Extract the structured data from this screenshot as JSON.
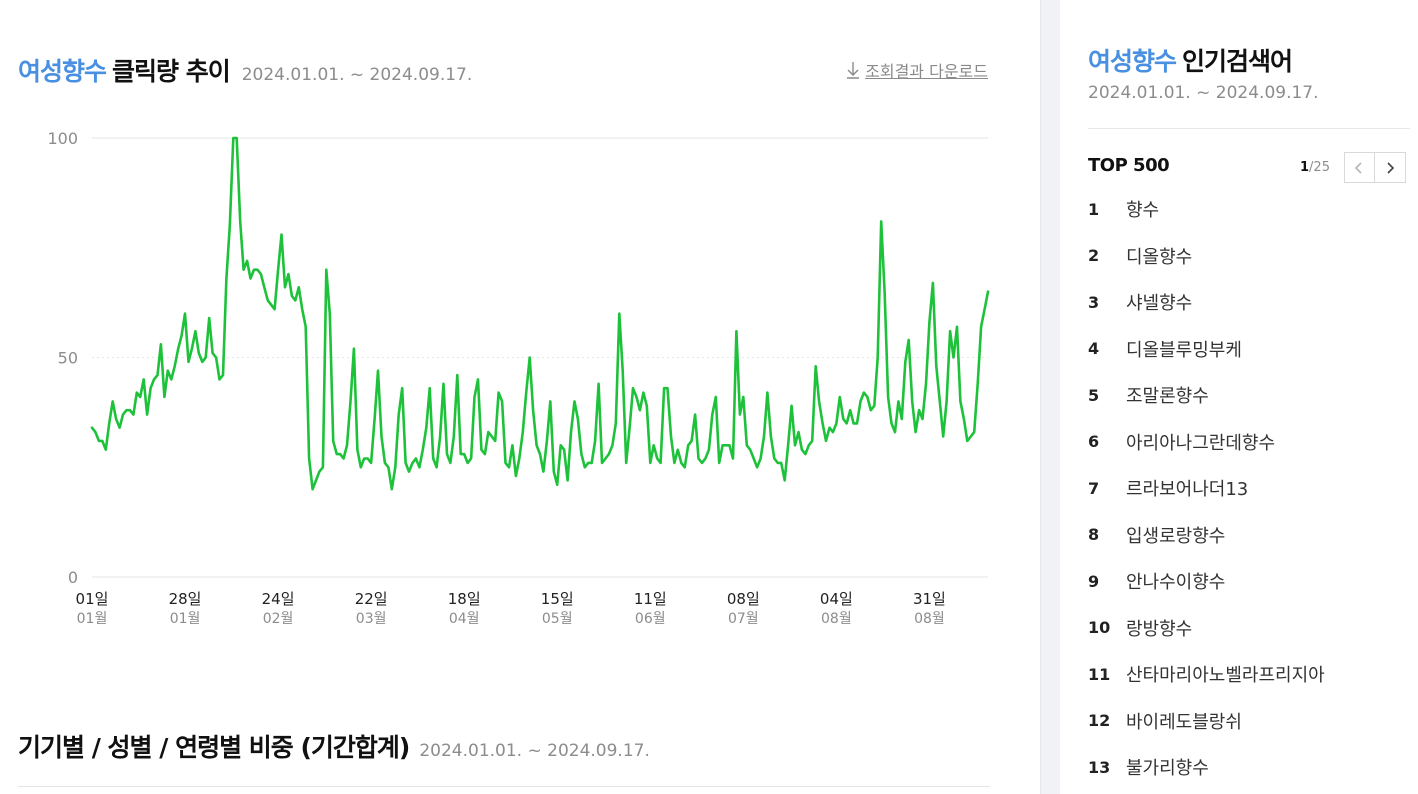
{
  "header": {
    "keyword": "여성향수",
    "title_rest": "클릭량 추이",
    "period": "2024.01.01. ~ 2024.09.17.",
    "download_label": "조회결과 다운로드"
  },
  "section2": {
    "title": "기기별 / 성별 / 연령별 비중 (기간합계)",
    "period": "2024.01.01. ~ 2024.09.17."
  },
  "sidebar": {
    "keyword": "여성향수",
    "title_rest": "인기검색어",
    "period": "2024.01.01. ~ 2024.09.17.",
    "top_label": "TOP 500",
    "page_current": "1",
    "page_total": "/25",
    "items": [
      {
        "rank": "1",
        "label": "향수"
      },
      {
        "rank": "2",
        "label": "디올향수"
      },
      {
        "rank": "3",
        "label": "샤넬향수"
      },
      {
        "rank": "4",
        "label": "디올블루밍부케"
      },
      {
        "rank": "5",
        "label": "조말론향수"
      },
      {
        "rank": "6",
        "label": "아리아나그란데향수"
      },
      {
        "rank": "7",
        "label": "르라보어나더13"
      },
      {
        "rank": "8",
        "label": "입생로랑향수"
      },
      {
        "rank": "9",
        "label": "안나수이향수"
      },
      {
        "rank": "10",
        "label": "랑방향수"
      },
      {
        "rank": "11",
        "label": "산타마리아노벨라프리지아"
      },
      {
        "rank": "12",
        "label": "바이레도블랑쉬"
      },
      {
        "rank": "13",
        "label": "불가리향수"
      }
    ]
  },
  "colors": {
    "accent": "#4a90e2",
    "line": "#1ec23a",
    "grid": "#e6e6e6",
    "muted": "#8c8c8c"
  },
  "icons": {
    "download": "download-arrow-icon",
    "prev": "chevron-left-icon",
    "next": "chevron-right-icon"
  },
  "chart_data": {
    "type": "line",
    "title": "여성향수 클릭량 추이",
    "xlabel": "",
    "ylabel": "",
    "ylim": [
      0,
      100
    ],
    "yticks": [
      0,
      50,
      100
    ],
    "grid": true,
    "x_tick_labels": [
      {
        "day": "01일",
        "month": "01월",
        "index": 0
      },
      {
        "day": "28일",
        "month": "01월",
        "index": 27
      },
      {
        "day": "24일",
        "month": "02월",
        "index": 54
      },
      {
        "day": "22일",
        "month": "03월",
        "index": 81
      },
      {
        "day": "18일",
        "month": "04월",
        "index": 108
      },
      {
        "day": "15일",
        "month": "05월",
        "index": 135
      },
      {
        "day": "11일",
        "month": "06월",
        "index": 162
      },
      {
        "day": "08일",
        "month": "07월",
        "index": 189
      },
      {
        "day": "04일",
        "month": "08월",
        "index": 216
      },
      {
        "day": "31일",
        "month": "08월",
        "index": 243
      }
    ],
    "series": [
      {
        "values": [
          34,
          33,
          31,
          31,
          29,
          35,
          40,
          36,
          34,
          37,
          38,
          38,
          37,
          42,
          41,
          45,
          37,
          43,
          45,
          46,
          53,
          41,
          47,
          45,
          48,
          52,
          55,
          60,
          49,
          52,
          56,
          51,
          49,
          50,
          59,
          51,
          50,
          45,
          46,
          68,
          80,
          100,
          100,
          81,
          70,
          72,
          68,
          70,
          70,
          69,
          66,
          63,
          62,
          61,
          70,
          78,
          66,
          69,
          64,
          63,
          66,
          61,
          57,
          27,
          20,
          22,
          24,
          25,
          70,
          60,
          31,
          28,
          28,
          27,
          30,
          40,
          52,
          29,
          25,
          27,
          27,
          26,
          36,
          47,
          32,
          26,
          25,
          20,
          25,
          37,
          43,
          26,
          24,
          26,
          27,
          25,
          29,
          34,
          43,
          27,
          25,
          32,
          44,
          28,
          26,
          32,
          46,
          28,
          28,
          26,
          27,
          41,
          45,
          29,
          28,
          33,
          32,
          31,
          42,
          40,
          26,
          25,
          30,
          23,
          27,
          33,
          42,
          50,
          38,
          30,
          28,
          24,
          31,
          40,
          24,
          21,
          30,
          29,
          22,
          33,
          40,
          36,
          28,
          25,
          26,
          26,
          31,
          44,
          26,
          27,
          28,
          30,
          35,
          60,
          47,
          26,
          34,
          43,
          41,
          38,
          42,
          39,
          26,
          30,
          27,
          26,
          43,
          43,
          32,
          26,
          29,
          26,
          25,
          30,
          31,
          37,
          27,
          26,
          27,
          29,
          37,
          41,
          26,
          30,
          30,
          30,
          27,
          56,
          37,
          41,
          30,
          29,
          27,
          25,
          27,
          32,
          42,
          32,
          27,
          26,
          26,
          22,
          30,
          39,
          30,
          33,
          29,
          28,
          30,
          31,
          48,
          40,
          35,
          31,
          34,
          33,
          35,
          41,
          36,
          35,
          38,
          35,
          35,
          40,
          42,
          41,
          38,
          39,
          50,
          81,
          65,
          41,
          35,
          33,
          40,
          36,
          49,
          54,
          40,
          33,
          38,
          36,
          44,
          58,
          67,
          48,
          40,
          32,
          40,
          56,
          50,
          57,
          40,
          36,
          31,
          32,
          33,
          44,
          57,
          61,
          65
        ]
      }
    ]
  }
}
